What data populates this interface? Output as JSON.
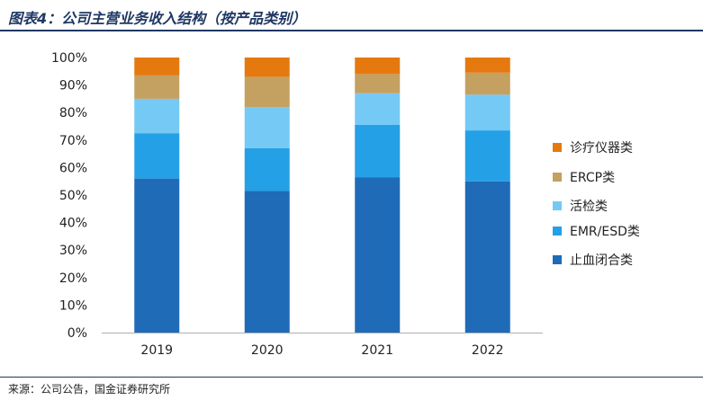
{
  "header": {
    "title": "图表4：公司主营业务收入结构（按产品类别）"
  },
  "footer": {
    "source": "来源：公司公告，国金证券研究所"
  },
  "chart_data": {
    "type": "bar",
    "stacked": true,
    "percent": true,
    "categories": [
      "2019",
      "2020",
      "2021",
      "2022"
    ],
    "ylim": [
      0,
      100
    ],
    "yticks": [
      "0%",
      "10%",
      "20%",
      "30%",
      "40%",
      "50%",
      "60%",
      "70%",
      "80%",
      "90%",
      "100%"
    ],
    "xlabel": "",
    "ylabel": "",
    "grid": false,
    "legend_position": "right",
    "series": [
      {
        "name": "止血闭合类",
        "color": "#1f6bb8",
        "values": [
          56,
          51.5,
          56.5,
          55
        ]
      },
      {
        "name": "EMR/ESD类",
        "color": "#24a0e6",
        "values": [
          16.5,
          15.5,
          19,
          18.5
        ]
      },
      {
        "name": "活检类",
        "color": "#75c9f5",
        "values": [
          12.5,
          15,
          11.5,
          13
        ]
      },
      {
        "name": "ERCP类",
        "color": "#c4a061",
        "values": [
          8.5,
          11,
          7,
          8
        ]
      },
      {
        "name": "诊疗仪器类",
        "color": "#e5790f",
        "values": [
          6.5,
          7,
          6,
          5.5
        ]
      }
    ]
  }
}
